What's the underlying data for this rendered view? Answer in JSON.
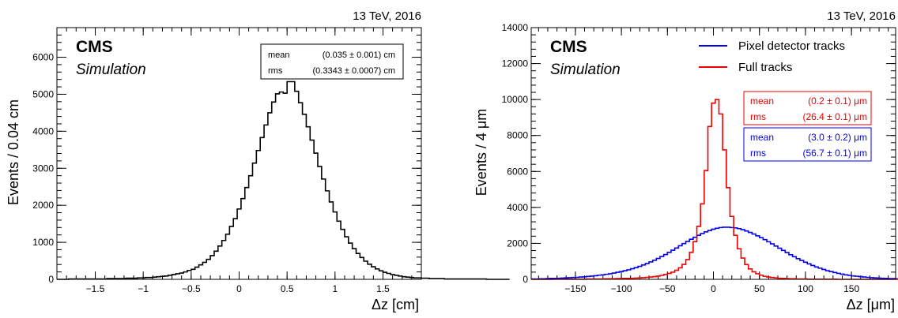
{
  "chart_data": [
    {
      "type": "histogram",
      "energy_label": "13 TeV, 2016",
      "cms_label": "CMS",
      "sim_label": "Simulation",
      "xlabel": "Δz [cm]",
      "ylabel": "Events / 0.04 cm",
      "xlim": [
        -1.9,
        1.9
      ],
      "ylim": [
        0,
        6800
      ],
      "xticks": [
        -1.5,
        -1,
        -0.5,
        0,
        0.5,
        1,
        1.5
      ],
      "xtick_labels": [
        "−1.5",
        "−1",
        "−0.5",
        "0",
        "0.5",
        "1",
        "1.5"
      ],
      "yticks": [
        0,
        1000,
        2000,
        3000,
        4000,
        5000,
        6000
      ],
      "ytick_labels": [
        "0",
        "1000",
        "2000",
        "3000",
        "4000",
        "5000",
        "6000"
      ],
      "stats": {
        "rows": [
          {
            "name": "mean",
            "value": "(0.035 ± 0.001) cm"
          },
          {
            "name": "rms",
            "value": "(0.3343 ± 0.0007) cm"
          }
        ]
      },
      "series": [
        {
          "color": "#000000",
          "bin_width": 0.04,
          "x_start": -1.9,
          "values": [
            0,
            0,
            0,
            10,
            10,
            10,
            10,
            10,
            10,
            10,
            10,
            10,
            10,
            20,
            20,
            20,
            20,
            20,
            30,
            30,
            30,
            40,
            40,
            50,
            50,
            60,
            70,
            80,
            90,
            110,
            130,
            150,
            170,
            200,
            240,
            270,
            330,
            390,
            460,
            540,
            640,
            760,
            900,
            1050,
            1220,
            1430,
            1640,
            1900,
            2180,
            2480,
            2800,
            3140,
            3480,
            3830,
            4170,
            4500,
            4790,
            5010,
            5060,
            5030,
            5340,
            5340,
            5080,
            4770,
            4460,
            4120,
            3760,
            3410,
            3050,
            2710,
            2390,
            2090,
            1820,
            1570,
            1350,
            1150,
            980,
            830,
            700,
            590,
            490,
            410,
            340,
            280,
            230,
            190,
            160,
            130,
            110,
            90,
            70,
            60,
            50,
            40,
            40,
            30,
            30,
            20,
            20,
            20,
            20,
            10,
            10,
            10,
            10,
            10,
            10,
            10,
            10,
            10,
            10,
            10,
            0,
            0,
            0,
            0,
            0,
            0
          ]
        }
      ]
    },
    {
      "type": "histogram",
      "energy_label": "13 TeV, 2016",
      "cms_label": "CMS",
      "sim_label": "Simulation",
      "xlabel": "Δz [μm]",
      "ylabel": "Events / 4 μm",
      "xlim": [
        -198,
        198
      ],
      "ylim": [
        0,
        14000
      ],
      "xticks": [
        -150,
        -100,
        -50,
        0,
        50,
        100,
        150
      ],
      "xtick_labels": [
        "−150",
        "−100",
        "−50",
        "0",
        "50",
        "100",
        "150"
      ],
      "yticks": [
        0,
        2000,
        4000,
        6000,
        8000,
        10000,
        12000,
        14000
      ],
      "ytick_labels": [
        "0",
        "2000",
        "4000",
        "6000",
        "8000",
        "10000",
        "12000",
        "14000"
      ],
      "legend": [
        {
          "label": "Pixel detector tracks",
          "color": "#0000ee"
        },
        {
          "label": "Full tracks",
          "color": "#ee0000"
        }
      ],
      "stats": [
        {
          "color": "#ee0000",
          "rows": [
            {
              "name": "mean",
              "value": "(0.2 ± 0.1) μm"
            },
            {
              "name": "rms",
              "value": "(26.4 ± 0.1) μm"
            }
          ]
        },
        {
          "color": "#0000ee",
          "rows": [
            {
              "name": "mean",
              "value": "(3.0 ± 0.2) μm"
            },
            {
              "name": "rms",
              "value": "(56.7 ± 0.1) μm"
            }
          ]
        }
      ],
      "series": [
        {
          "name": "Pixel detector tracks",
          "color": "#0000ee",
          "bin_width": 4,
          "x_start": -198,
          "values": [
            20,
            20,
            30,
            30,
            40,
            50,
            50,
            60,
            70,
            80,
            90,
            100,
            110,
            130,
            140,
            160,
            180,
            200,
            230,
            250,
            280,
            310,
            350,
            390,
            430,
            480,
            530,
            590,
            650,
            720,
            800,
            880,
            970,
            1060,
            1160,
            1270,
            1380,
            1500,
            1620,
            1740,
            1870,
            1990,
            2110,
            2230,
            2340,
            2450,
            2550,
            2640,
            2720,
            2790,
            2840,
            2880,
            2900,
            2900,
            2880,
            2860,
            2820,
            2760,
            2690,
            2610,
            2520,
            2420,
            2320,
            2210,
            2090,
            1970,
            1850,
            1730,
            1610,
            1490,
            1370,
            1260,
            1150,
            1050,
            950,
            860,
            770,
            690,
            620,
            550,
            480,
            430,
            380,
            330,
            290,
            250,
            220,
            190,
            170,
            150,
            130,
            110,
            90,
            80,
            70,
            60,
            50,
            40,
            40,
            30
          ]
        },
        {
          "name": "Full tracks",
          "color": "#ee0000",
          "bin_width": 4,
          "x_start": -198,
          "values": [
            0,
            0,
            0,
            0,
            0,
            0,
            10,
            10,
            10,
            10,
            10,
            10,
            10,
            10,
            10,
            20,
            20,
            20,
            20,
            20,
            30,
            30,
            30,
            40,
            40,
            50,
            50,
            60,
            70,
            80,
            90,
            110,
            130,
            150,
            180,
            220,
            270,
            330,
            400,
            500,
            640,
            830,
            1100,
            1500,
            2100,
            2950,
            4200,
            6050,
            8500,
            9800,
            10000,
            9200,
            7200,
            5100,
            3500,
            2450,
            1700,
            1180,
            820,
            580,
            420,
            310,
            230,
            170,
            130,
            100,
            80,
            60,
            50,
            40,
            30,
            30,
            20,
            20,
            20,
            10,
            10,
            10,
            10,
            10,
            10,
            10,
            10,
            0,
            0,
            0,
            0,
            0,
            0,
            0,
            0,
            0,
            0,
            0,
            0,
            0,
            0,
            0,
            0,
            0
          ]
        }
      ]
    }
  ]
}
